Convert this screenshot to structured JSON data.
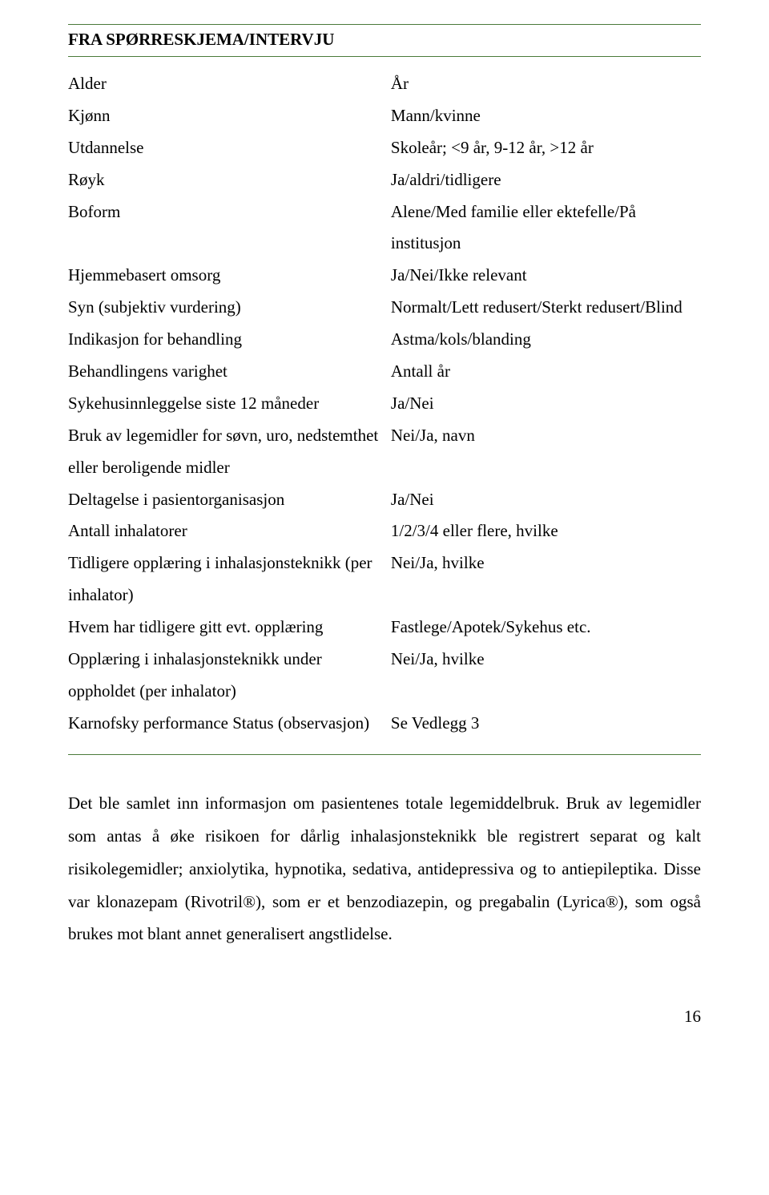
{
  "title": "FRA SPØRRESKJEMA/INTERVJU",
  "rows": [
    {
      "l": "Alder",
      "r": "År"
    },
    {
      "l": "Kjønn",
      "r": "Mann/kvinne"
    },
    {
      "l": "Utdannelse",
      "r": "Skoleår; <9 år, 9-12 år, >12 år"
    },
    {
      "l": "Røyk",
      "r": "Ja/aldri/tidligere"
    },
    {
      "l": "Boform",
      "r": "Alene/Med familie eller ektefelle/På institusjon"
    },
    {
      "l": "Hjemmebasert omsorg",
      "r": "Ja/Nei/Ikke relevant"
    },
    {
      "l": "Syn (subjektiv vurdering)",
      "r": "Normalt/Lett redusert/Sterkt redusert/Blind"
    },
    {
      "l": "Indikasjon for behandling",
      "r": "Astma/kols/blanding"
    },
    {
      "l": "Behandlingens varighet",
      "r": "Antall år"
    },
    {
      "l": "Sykehusinnleggelse siste 12 måneder",
      "r": "Ja/Nei"
    },
    {
      "l": "Bruk av legemidler for søvn, uro, nedstemthet eller beroligende midler",
      "r": "Nei/Ja, navn"
    },
    {
      "l": "Deltagelse i pasientorganisasjon",
      "r": "Ja/Nei"
    },
    {
      "l": "Antall inhalatorer",
      "r": "1/2/3/4 eller flere, hvilke"
    },
    {
      "l": "Tidligere opplæring i inhalasjonsteknikk (per inhalator)",
      "r": "Nei/Ja, hvilke"
    },
    {
      "l": "Hvem har tidligere gitt evt. opplæring",
      "r": "Fastlege/Apotek/Sykehus etc."
    },
    {
      "l": "Opplæring i inhalasjonsteknikk under oppholdet (per inhalator)",
      "r": "Nei/Ja, hvilke"
    },
    {
      "l": "Karnofsky performance Status (observasjon)",
      "r": "Se Vedlegg 3"
    }
  ],
  "paragraph": "Det ble samlet inn informasjon om pasientenes totale legemiddelbruk. Bruk av legemidler som antas å øke risikoen for dårlig inhalasjonsteknikk ble registrert separat og kalt risikolegemidler; anxiolytika, hypnotika, sedativa, antidepressiva og to antiepileptika. Disse var klonazepam (Rivotril®), som er et benzodiazepin, og pregabalin (Lyrica®), som også brukes mot blant annet generalisert angstlidelse.",
  "page_number": "16",
  "colors": {
    "rule": "#4a7a3a",
    "text": "#000000",
    "bg": "#ffffff"
  }
}
